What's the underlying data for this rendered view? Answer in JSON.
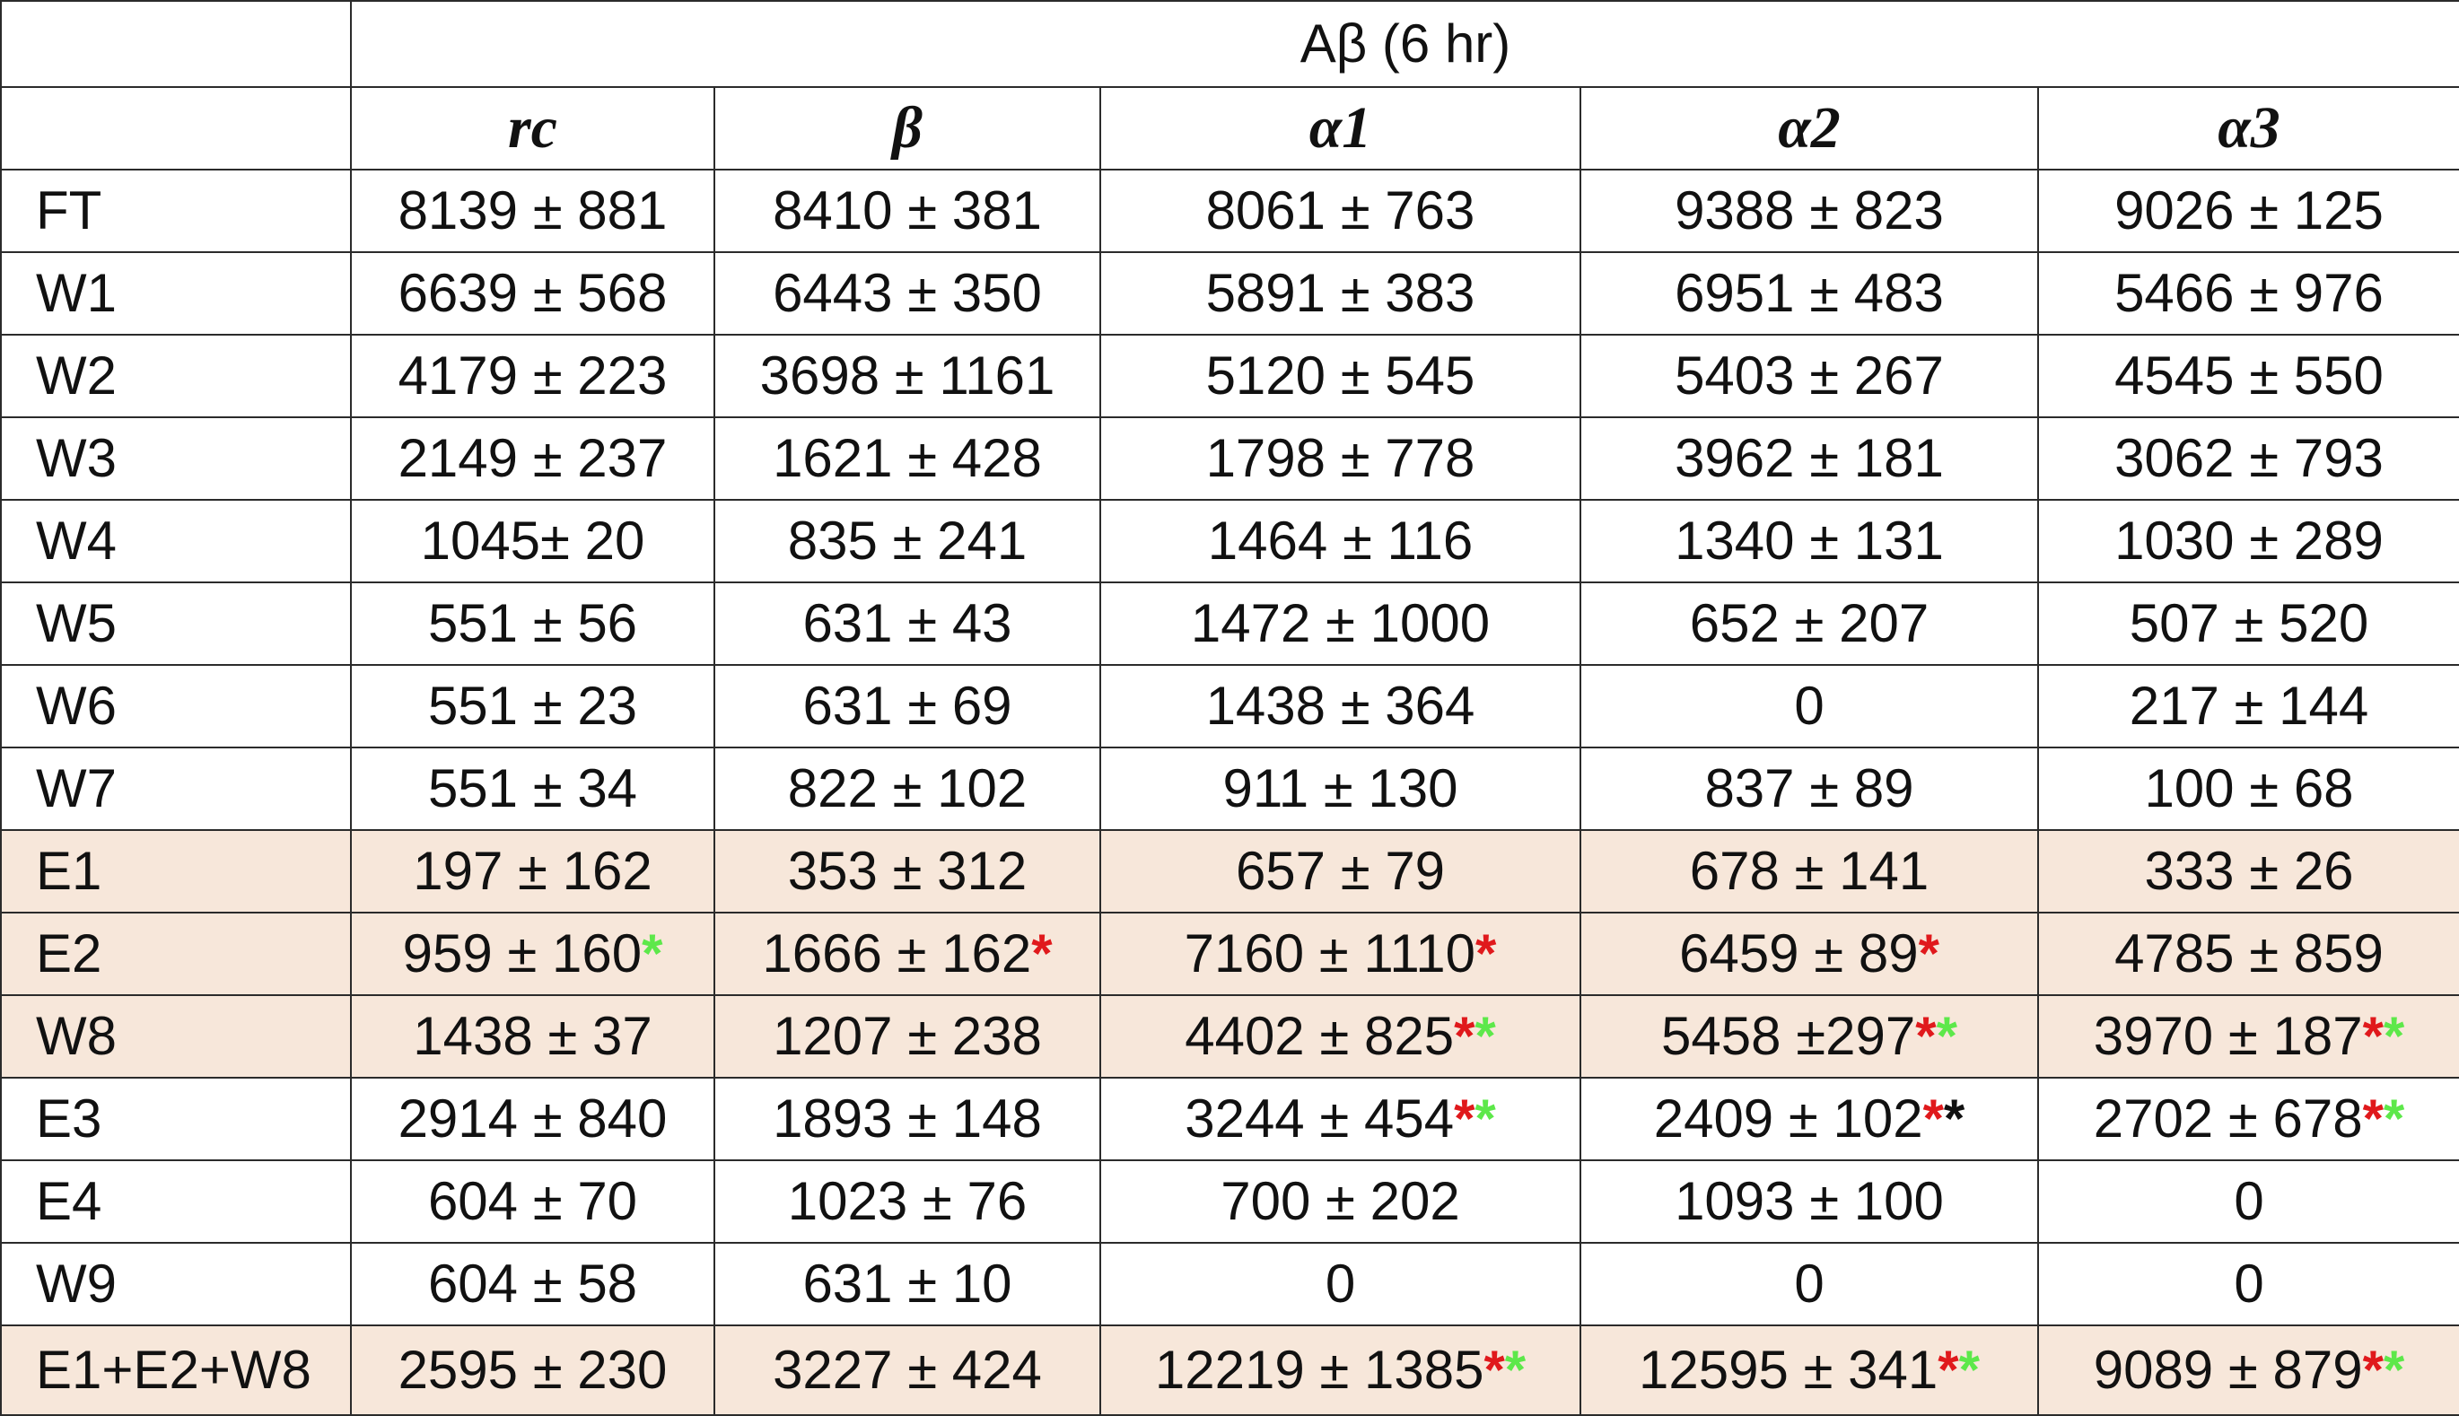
{
  "header": {
    "group_title": "Aβ (6 hr)",
    "columns": [
      "rc",
      "β",
      "α1",
      "α2",
      "α3"
    ]
  },
  "colors": {
    "shaded_row": "#f7e7da",
    "asterisk_red": "#e0191c",
    "asterisk_green": "#5de84a",
    "asterisk_black": "#111111",
    "border": "#2b2b2b"
  },
  "rows": [
    {
      "label": "FT",
      "shaded": false,
      "cells": [
        {
          "value": "8139 ± 881",
          "marks": []
        },
        {
          "value": "8410 ± 381",
          "marks": []
        },
        {
          "value": "8061 ± 763",
          "marks": []
        },
        {
          "value": "9388 ± 823",
          "marks": []
        },
        {
          "value": "9026 ± 125",
          "marks": []
        }
      ]
    },
    {
      "label": "W1",
      "shaded": false,
      "cells": [
        {
          "value": "6639 ± 568",
          "marks": []
        },
        {
          "value": "6443 ± 350",
          "marks": []
        },
        {
          "value": "5891 ± 383",
          "marks": []
        },
        {
          "value": "6951 ± 483",
          "marks": []
        },
        {
          "value": "5466 ± 976",
          "marks": []
        }
      ]
    },
    {
      "label": "W2",
      "shaded": false,
      "cells": [
        {
          "value": "4179 ± 223",
          "marks": []
        },
        {
          "value": "3698 ± 1161",
          "marks": []
        },
        {
          "value": "5120 ± 545",
          "marks": []
        },
        {
          "value": "5403 ± 267",
          "marks": []
        },
        {
          "value": "4545 ± 550",
          "marks": []
        }
      ]
    },
    {
      "label": "W3",
      "shaded": false,
      "cells": [
        {
          "value": "2149 ± 237",
          "marks": []
        },
        {
          "value": "1621 ± 428",
          "marks": []
        },
        {
          "value": "1798 ± 778",
          "marks": []
        },
        {
          "value": "3962 ± 181",
          "marks": []
        },
        {
          "value": "3062 ± 793",
          "marks": []
        }
      ]
    },
    {
      "label": "W4",
      "shaded": false,
      "cells": [
        {
          "value": "1045± 20",
          "marks": []
        },
        {
          "value": "835 ± 241",
          "marks": []
        },
        {
          "value": "1464 ± 116",
          "marks": []
        },
        {
          "value": "1340 ± 131",
          "marks": []
        },
        {
          "value": "1030 ± 289",
          "marks": []
        }
      ]
    },
    {
      "label": "W5",
      "shaded": false,
      "cells": [
        {
          "value": "551 ± 56",
          "marks": []
        },
        {
          "value": "631 ± 43",
          "marks": []
        },
        {
          "value": "1472 ± 1000",
          "marks": []
        },
        {
          "value": "652 ± 207",
          "marks": []
        },
        {
          "value": "507 ± 520",
          "marks": []
        }
      ]
    },
    {
      "label": "W6",
      "shaded": false,
      "cells": [
        {
          "value": "551 ± 23",
          "marks": []
        },
        {
          "value": "631 ± 69",
          "marks": []
        },
        {
          "value": "1438 ± 364",
          "marks": []
        },
        {
          "value": "0",
          "marks": []
        },
        {
          "value": "217 ± 144",
          "marks": []
        }
      ]
    },
    {
      "label": "W7",
      "shaded": false,
      "cells": [
        {
          "value": "551 ± 34",
          "marks": []
        },
        {
          "value": "822 ± 102",
          "marks": []
        },
        {
          "value": "911 ± 130",
          "marks": []
        },
        {
          "value": "837 ± 89",
          "marks": []
        },
        {
          "value": "100 ± 68",
          "marks": []
        }
      ]
    },
    {
      "label": "E1",
      "shaded": true,
      "cells": [
        {
          "value": "197 ± 162",
          "marks": []
        },
        {
          "value": "353 ± 312",
          "marks": []
        },
        {
          "value": "657 ± 79",
          "marks": []
        },
        {
          "value": "678 ± 141",
          "marks": []
        },
        {
          "value": "333 ± 26",
          "marks": []
        }
      ]
    },
    {
      "label": "E2",
      "shaded": true,
      "cells": [
        {
          "value": "959 ± 160",
          "marks": [
            "green"
          ]
        },
        {
          "value": "1666 ± 162",
          "marks": [
            "red"
          ]
        },
        {
          "value": "7160 ± 1110",
          "marks": [
            "red"
          ]
        },
        {
          "value": "6459 ± 89",
          "marks": [
            "red"
          ]
        },
        {
          "value": "4785 ± 859",
          "marks": []
        }
      ]
    },
    {
      "label": "W8",
      "shaded": true,
      "cells": [
        {
          "value": "1438 ± 37",
          "marks": []
        },
        {
          "value": "1207 ± 238",
          "marks": []
        },
        {
          "value": "4402 ± 825",
          "marks": [
            "red",
            "green"
          ]
        },
        {
          "value": "5458 ±297",
          "marks": [
            "red",
            "green"
          ]
        },
        {
          "value": "3970 ± 187",
          "marks": [
            "red",
            "green"
          ]
        }
      ]
    },
    {
      "label": "E3",
      "shaded": false,
      "cells": [
        {
          "value": "2914 ± 840",
          "marks": []
        },
        {
          "value": "1893 ± 148",
          "marks": []
        },
        {
          "value": "3244 ± 454",
          "marks": [
            "red",
            "green"
          ]
        },
        {
          "value": "2409 ± 102",
          "marks": [
            "red",
            "black"
          ]
        },
        {
          "value": "2702 ± 678",
          "marks": [
            "red",
            "green"
          ]
        }
      ]
    },
    {
      "label": "E4",
      "shaded": false,
      "cells": [
        {
          "value": "604 ± 70",
          "marks": []
        },
        {
          "value": "1023 ± 76",
          "marks": []
        },
        {
          "value": "700 ± 202",
          "marks": []
        },
        {
          "value": "1093 ± 100",
          "marks": []
        },
        {
          "value": "0",
          "marks": []
        }
      ]
    },
    {
      "label": "W9",
      "shaded": false,
      "cells": [
        {
          "value": "604 ± 58",
          "marks": []
        },
        {
          "value": "631 ± 10",
          "marks": []
        },
        {
          "value": "0",
          "marks": []
        },
        {
          "value": "0",
          "marks": []
        },
        {
          "value": "0",
          "marks": []
        }
      ]
    },
    {
      "label": "E1+E2+W8",
      "shaded": true,
      "cells": [
        {
          "value": "2595 ± 230",
          "marks": []
        },
        {
          "value": "3227 ± 424",
          "marks": []
        },
        {
          "value": "12219 ± 1385",
          "marks": [
            "red",
            "green"
          ]
        },
        {
          "value": "12595 ± 341",
          "marks": [
            "red",
            "green"
          ]
        },
        {
          "value": "9089 ± 879",
          "marks": [
            "red",
            "green"
          ]
        }
      ]
    }
  ]
}
